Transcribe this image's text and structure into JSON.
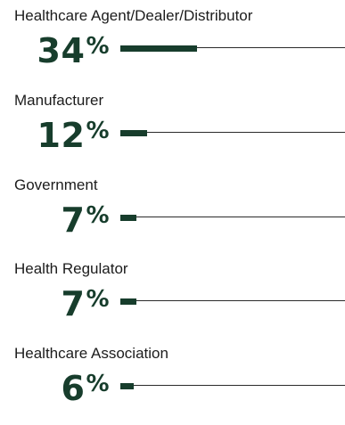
{
  "chart_data": {
    "type": "bar",
    "orientation": "horizontal",
    "categories": [
      "Healthcare Agent/Dealer/Distributor",
      "Manufacturer",
      "Government",
      "Health Regulator",
      "Healthcare Association"
    ],
    "values": [
      34,
      12,
      7,
      7,
      6
    ],
    "value_labels": [
      "34%",
      "12%",
      "7%",
      "7%",
      "6%"
    ],
    "number_texts": [
      "34",
      "12",
      "7",
      "7",
      "6"
    ],
    "percent_symbol": "%",
    "xlim": [
      0,
      100
    ],
    "colors": {
      "bar": "#173d2c",
      "track": "#2b2b2b",
      "label": "#1c1c1c",
      "value": "#173d2c"
    }
  }
}
